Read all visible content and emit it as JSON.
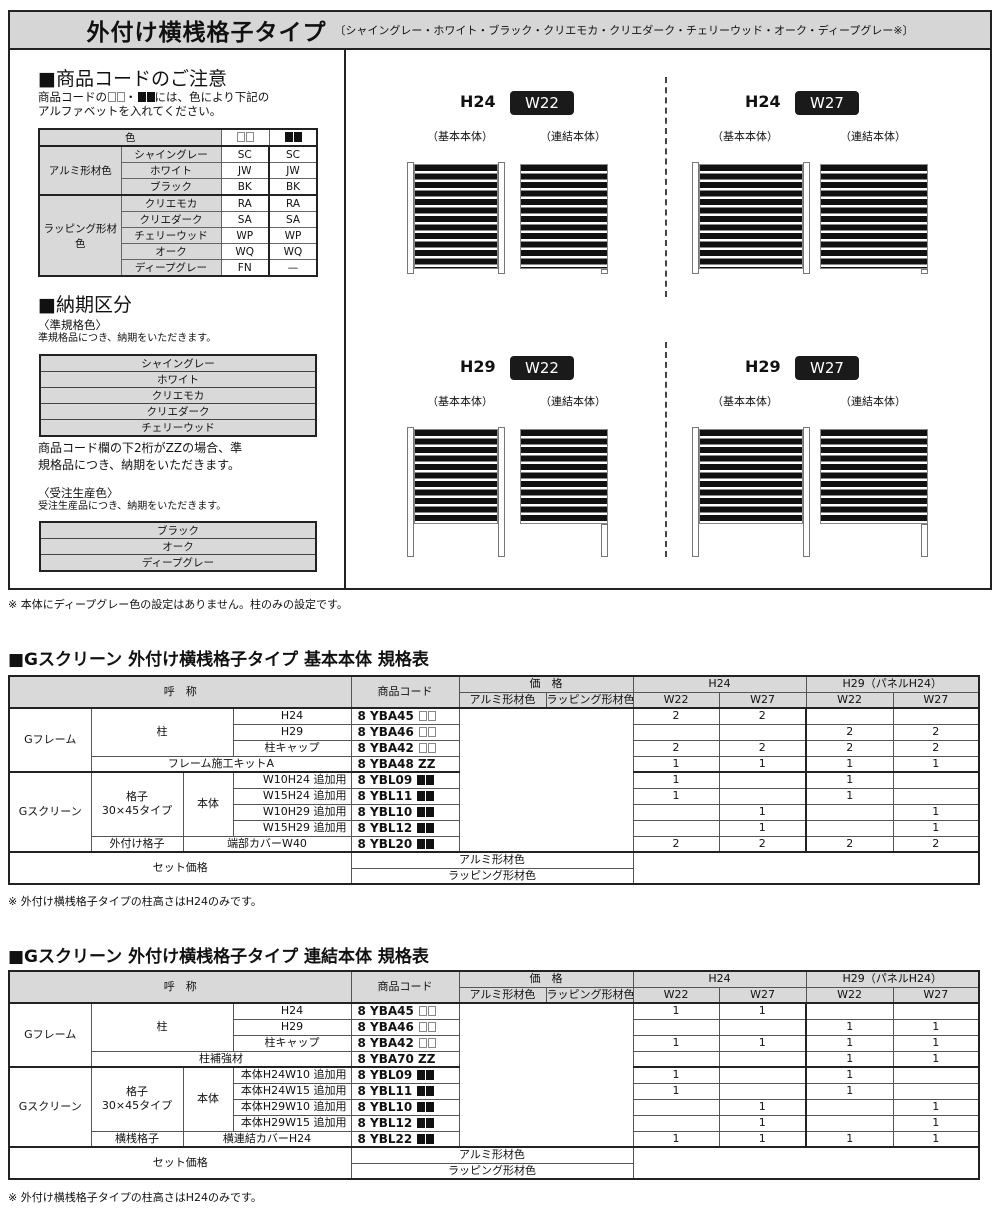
{
  "header": {
    "title": "外付け横桟格子タイプ",
    "colors_note": "〔シャイングレー・ホワイト・ブラック・クリエモカ・クリエダーク・チェリーウッド・オーク・ディープグレー※〕"
  },
  "code_notice": {
    "title": "■商品コードのご注意",
    "text_1": "商品コードの",
    "text_2": "・",
    "text_3": "には、色により下記の",
    "text_4": "アルファベットを入れてください。",
    "table": {
      "header": "色",
      "groups": [
        {
          "name": "アルミ形材色",
          "rows": [
            {
              "color": "シャイングレー",
              "white": "SC",
              "black": "SC"
            },
            {
              "color": "ホワイト",
              "white": "JW",
              "black": "JW"
            },
            {
              "color": "ブラック",
              "white": "BK",
              "black": "BK"
            }
          ]
        },
        {
          "name": "ラッピング形材色",
          "rows": [
            {
              "color": "クリエモカ",
              "white": "RA",
              "black": "RA"
            },
            {
              "color": "クリエダーク",
              "white": "SA",
              "black": "SA"
            },
            {
              "color": "チェリーウッド",
              "white": "WP",
              "black": "WP"
            },
            {
              "color": "オーク",
              "white": "WQ",
              "black": "WQ"
            },
            {
              "color": "ディープグレー",
              "white": "FN",
              "black": "—"
            }
          ]
        }
      ]
    }
  },
  "delivery": {
    "title": "■納期区分",
    "standard_title": "〈準規格色〉",
    "standard_text": "準規格品につき、納期をいただきます。",
    "standard_colors": [
      "シャイングレー",
      "ホワイト",
      "クリエモカ",
      "クリエダーク",
      "チェリーウッド"
    ],
    "zz_note_1": "商品コード欄の下2桁がZZの場合、準",
    "zz_note_2": "規格品につき、納期をいただきます。",
    "order_title": "〈受注生産色〉",
    "order_text": "受注生産品につき、納期をいただきます。",
    "order_colors": [
      "ブラック",
      "オーク",
      "ディープグレー"
    ]
  },
  "diagrams": [
    {
      "h": "H24",
      "w": "W22"
    },
    {
      "h": "H24",
      "w": "W27"
    },
    {
      "h": "H29",
      "w": "W22"
    },
    {
      "h": "H29",
      "w": "W27"
    }
  ],
  "diagram_captions": {
    "basic": "（基本本体）",
    "linked": "（連結本体）"
  },
  "top_note": "※ 本体にディープグレー色の設定はありません。柱のみの設定です。",
  "tables": [
    {
      "title": "■Gスクリーン 外付け横桟格子タイプ 基本本体 規格表",
      "header": {
        "name": "呼　称",
        "code": "商品コード",
        "price": "価　格",
        "price_alumi": "アルミ形材色",
        "price_wrap": "ラッピング形材色",
        "h24": "H24",
        "h29": "H29（パネルH24）",
        "w22": "W22",
        "w27": "W27"
      },
      "labels": {
        "gframe": "Gフレーム",
        "post": "柱",
        "gscreen": "Gスクリーン",
        "lattice": "格子",
        "lattice_type": "30×45タイプ",
        "body": "本体",
        "last_group": "外付け格子"
      },
      "rows": [
        {
          "item": "H24",
          "code": "8 YBA45",
          "swatch": "white",
          "qty": [
            "2",
            "2",
            "",
            ""
          ]
        },
        {
          "item": "H29",
          "code": "8 YBA46",
          "swatch": "white",
          "qty": [
            "",
            "",
            "2",
            "2"
          ]
        },
        {
          "item": "柱キャップ",
          "code": "8 YBA42",
          "swatch": "white",
          "qty": [
            "2",
            "2",
            "2",
            "2"
          ]
        },
        {
          "item": "フレーム施工キットA",
          "code": "8 YBA48 ZZ",
          "swatch": "",
          "qty": [
            "1",
            "1",
            "1",
            "1"
          ]
        },
        {
          "item": "W10H24 追加用",
          "code": "8 YBL09",
          "swatch": "black",
          "qty": [
            "1",
            "",
            "1",
            ""
          ]
        },
        {
          "item": "W15H24 追加用",
          "code": "8 YBL11",
          "swatch": "black",
          "qty": [
            "1",
            "",
            "1",
            ""
          ]
        },
        {
          "item": "W10H29 追加用",
          "code": "8 YBL10",
          "swatch": "black",
          "qty": [
            "",
            "1",
            "",
            "1"
          ]
        },
        {
          "item": "W15H29 追加用",
          "code": "8 YBL12",
          "swatch": "black",
          "qty": [
            "",
            "1",
            "",
            "1"
          ]
        },
        {
          "item": "端部カバーW40",
          "code": "8 YBL20",
          "swatch": "black",
          "qty": [
            "2",
            "2",
            "2",
            "2"
          ]
        }
      ],
      "set_price": "セット価格",
      "set_rows": [
        "アルミ形材色",
        "ラッピング形材色"
      ],
      "note": "※ 外付け横桟格子タイプの柱高さはH24のみです。"
    },
    {
      "title": "■Gスクリーン 外付け横桟格子タイプ 連結本体 規格表",
      "header": {
        "name": "呼　称",
        "code": "商品コード",
        "price": "価　格",
        "price_alumi": "アルミ形材色",
        "price_wrap": "ラッピング形材色",
        "h24": "H24",
        "h29": "H29（パネルH24）",
        "w22": "W22",
        "w27": "W27"
      },
      "labels": {
        "gframe": "Gフレーム",
        "post": "柱",
        "gscreen": "Gスクリーン",
        "lattice": "格子",
        "lattice_type": "30×45タイプ",
        "body": "本体",
        "last_group": "横桟格子"
      },
      "rows": [
        {
          "item": "H24",
          "code": "8 YBA45",
          "swatch": "white",
          "qty": [
            "1",
            "1",
            "",
            ""
          ]
        },
        {
          "item": "H29",
          "code": "8 YBA46",
          "swatch": "white",
          "qty": [
            "",
            "",
            "1",
            "1"
          ]
        },
        {
          "item": "柱キャップ",
          "code": "8 YBA42",
          "swatch": "white",
          "qty": [
            "1",
            "1",
            "1",
            "1"
          ]
        },
        {
          "item": "柱補強材",
          "code": "8 YBA70 ZZ",
          "swatch": "",
          "qty": [
            "",
            "",
            "1",
            "1"
          ]
        },
        {
          "item": "本体H24W10 追加用",
          "code": "8 YBL09",
          "swatch": "black",
          "qty": [
            "1",
            "",
            "1",
            ""
          ]
        },
        {
          "item": "本体H24W15 追加用",
          "code": "8 YBL11",
          "swatch": "black",
          "qty": [
            "1",
            "",
            "1",
            ""
          ]
        },
        {
          "item": "本体H29W10 追加用",
          "code": "8 YBL10",
          "swatch": "black",
          "qty": [
            "",
            "1",
            "",
            "1"
          ]
        },
        {
          "item": "本体H29W15 追加用",
          "code": "8 YBL12",
          "swatch": "black",
          "qty": [
            "",
            "1",
            "",
            "1"
          ]
        },
        {
          "item": "横連結カバーH24",
          "code": "8 YBL22",
          "swatch": "black",
          "qty": [
            "1",
            "1",
            "1",
            "1"
          ]
        }
      ],
      "set_price": "セット価格",
      "set_rows": [
        "アルミ形材色",
        "ラッピング形材色"
      ],
      "note": "※ 外付け横桟格子タイプの柱高さはH24のみです。"
    }
  ]
}
